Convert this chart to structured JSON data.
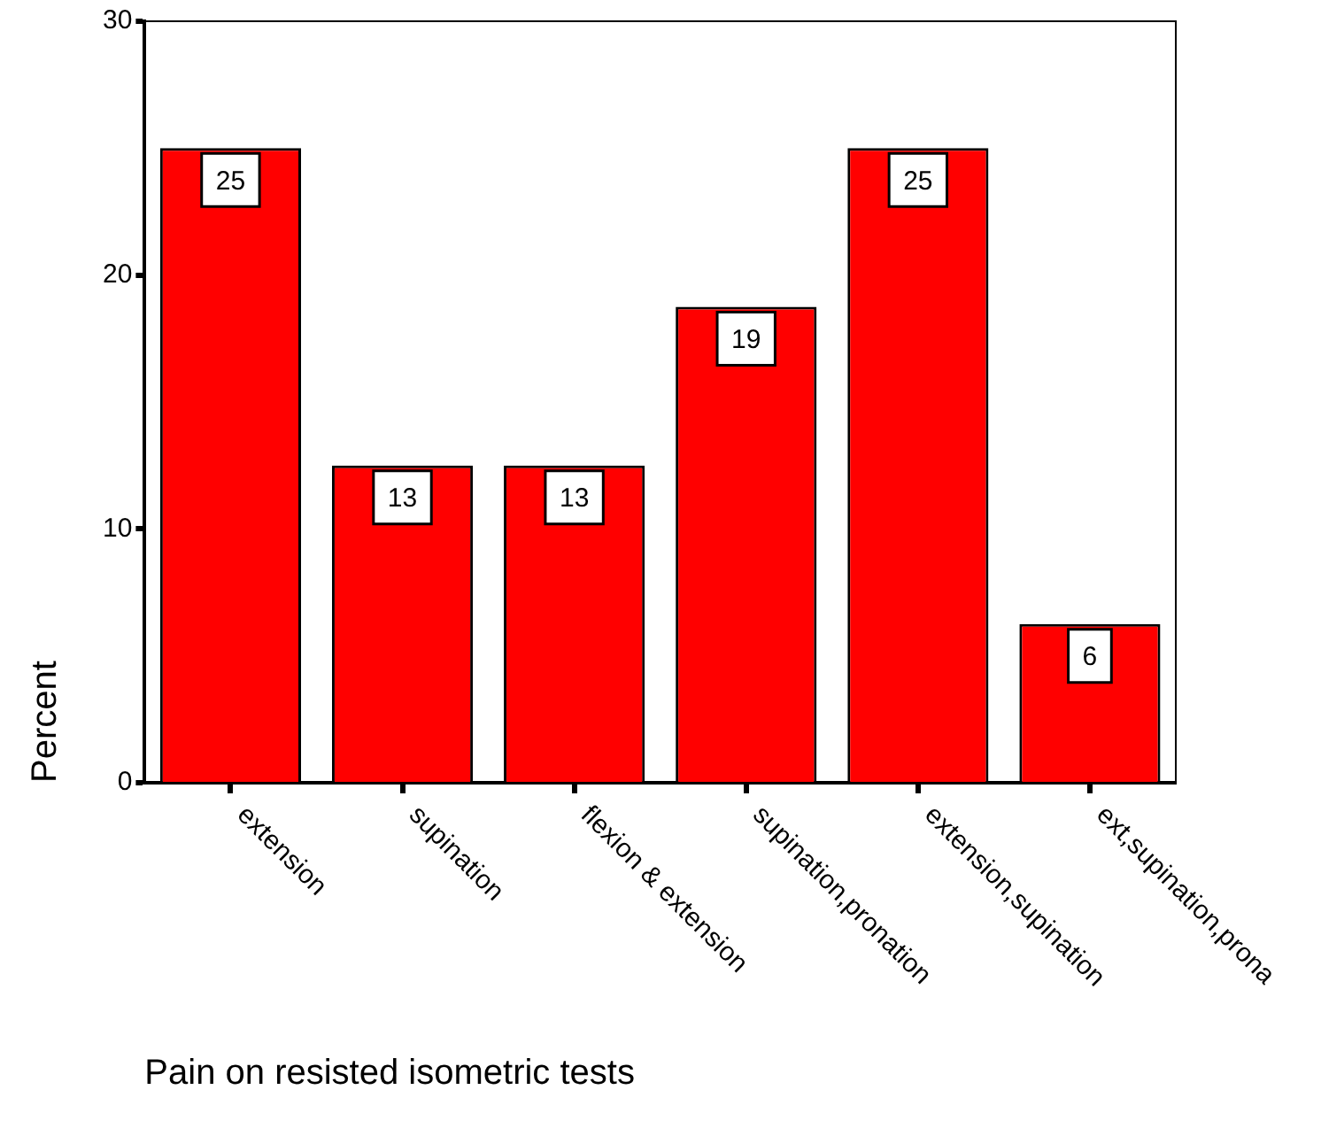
{
  "chart_data": {
    "type": "bar",
    "xlabel": "Pain on resisted isometric tests",
    "ylabel": "Percent",
    "categories": [
      "extension",
      "supination",
      "flexion & extension",
      "supination,pronation",
      "extension,supination",
      "ext,supination,prona"
    ],
    "values": [
      25,
      12.5,
      12.5,
      18.75,
      25,
      6.25
    ],
    "value_labels": [
      "25",
      "13",
      "13",
      "19",
      "25",
      "6"
    ],
    "color": "#ff0000",
    "ylim": [
      0,
      30
    ],
    "yticks": [
      0,
      10,
      20,
      30
    ]
  }
}
